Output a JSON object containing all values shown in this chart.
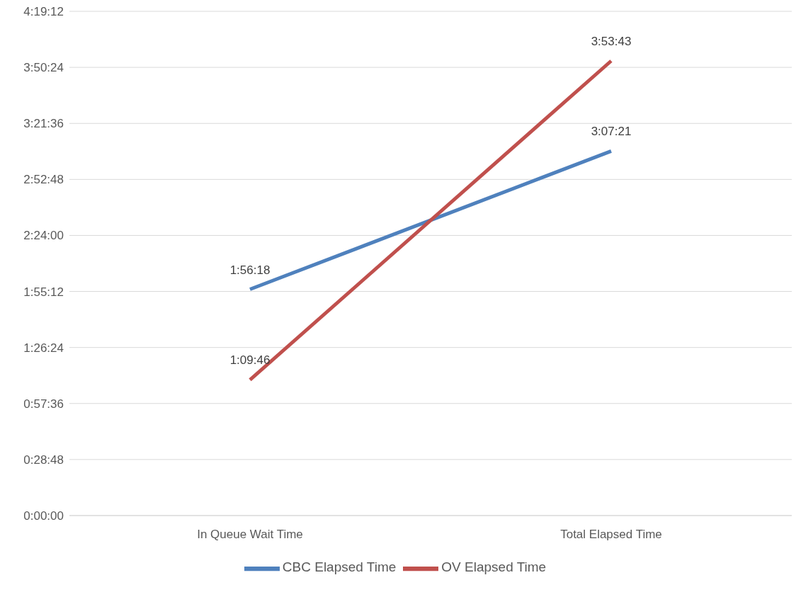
{
  "chart_data": {
    "type": "line",
    "categories": [
      "In Queue Wait Time",
      "Total Elapsed Time"
    ],
    "series": [
      {
        "name": "CBC Elapsed Time",
        "color": "#4f81bd",
        "values": [
          1.938333,
          3.1225
        ],
        "value_labels": [
          "1:56:18",
          "3:07:21"
        ]
      },
      {
        "name": "OV Elapsed Time",
        "color": "#c0504d",
        "values": [
          1.162778,
          3.895278
        ],
        "value_labels": [
          "1:09:46",
          "3:53:43"
        ]
      }
    ],
    "ylim": [
      0,
      4.32
    ],
    "yticks": [
      {
        "value": 0,
        "label": "0:00:00"
      },
      {
        "value": 0.48,
        "label": "0:28:48"
      },
      {
        "value": 0.96,
        "label": "0:57:36"
      },
      {
        "value": 1.44,
        "label": "1:26:24"
      },
      {
        "value": 1.92,
        "label": "1:55:12"
      },
      {
        "value": 2.4,
        "label": "2:24:00"
      },
      {
        "value": 2.88,
        "label": "2:52:48"
      },
      {
        "value": 3.36,
        "label": "3:21:36"
      },
      {
        "value": 3.84,
        "label": "3:50:24"
      },
      {
        "value": 4.32,
        "label": "4:19:12"
      }
    ],
    "grid": "y",
    "legend": "bottom",
    "marker": "none",
    "line_style": "solid"
  }
}
